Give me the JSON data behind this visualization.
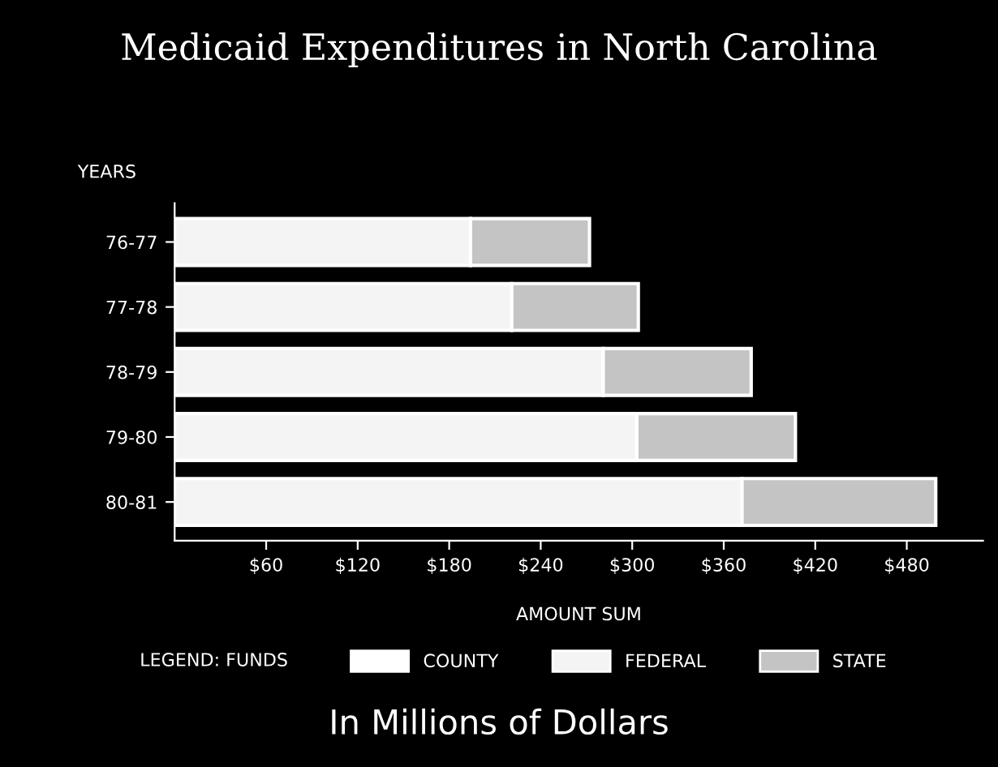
{
  "chart_data": {
    "type": "bar",
    "orientation": "horizontal",
    "stacked": true,
    "title": "Medicaid Expenditures in North Carolina",
    "xlabel": "AMOUNT SUM",
    "ylabel": "YEARS",
    "legend_title": "LEGEND: FUNDS",
    "annotations": [
      "In Millions of Dollars"
    ],
    "categories": [
      "76-77",
      "77-78",
      "78-79",
      "79-80",
      "80-81"
    ],
    "series": [
      {
        "name": "COUNTY",
        "color": "#ffffff",
        "values": [
          null,
          null,
          null,
          null,
          null
        ]
      },
      {
        "name": "FEDERAL",
        "color": "#f4f4f4",
        "values": [
          194,
          221,
          281,
          303,
          372
        ]
      },
      {
        "name": "STATE",
        "color": "#c4c4c4",
        "values": [
          78,
          83,
          97,
          104,
          127
        ]
      }
    ],
    "xlim": [
      0,
      530
    ],
    "xticks": [
      {
        "value": 60,
        "label": "$60"
      },
      {
        "value": 120,
        "label": "$120"
      },
      {
        "value": 180,
        "label": "$180"
      },
      {
        "value": 240,
        "label": "$240"
      },
      {
        "value": 300,
        "label": "$300"
      },
      {
        "value": 360,
        "label": "$360"
      },
      {
        "value": 420,
        "label": "$420"
      },
      {
        "value": 480,
        "label": "$480"
      }
    ],
    "grid": false,
    "legend": "bottom"
  }
}
